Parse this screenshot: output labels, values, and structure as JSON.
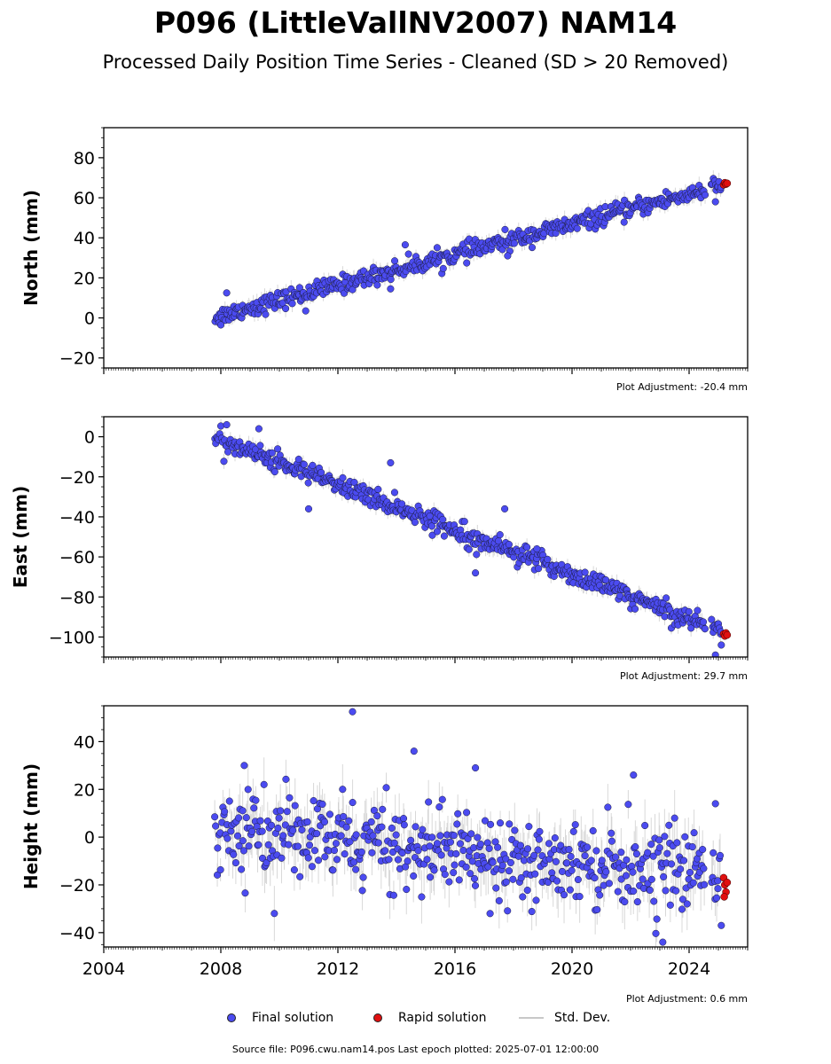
{
  "title": "P096 (LittleVallNV2007) NAM14",
  "subtitle": "Processed Daily Position Time Series - Cleaned (SD > 20 Removed)",
  "legend": {
    "final_label": "Final solution",
    "rapid_label": "Rapid solution",
    "std_label": "Std. Dev.",
    "final_color": "#4b4bf0",
    "rapid_color": "#e01010",
    "std_color": "#c8c8c8"
  },
  "footer": "Source file: P096.cwu.nam14.pos  Last epoch plotted: 2025-07-01 12:00:00",
  "chart_data": [
    {
      "type": "scatter",
      "ylabel": "North (mm)",
      "xlim": [
        2004,
        2026
      ],
      "ylim": [
        -25,
        95
      ],
      "yticks": [
        -20,
        0,
        20,
        40,
        60,
        80
      ],
      "adjustment": "Plot Adjustment: -20.4 mm",
      "trend": {
        "x0": 2007.8,
        "y0": 0.5,
        "x1": 2025.1,
        "y1": 66
      },
      "scatter": 2.2,
      "std_size": 3,
      "rapid": {
        "x": [
          2025.18,
          2025.22,
          2025.26,
          2025.3
        ],
        "y": [
          66.5,
          67.5,
          66.8,
          67.2
        ]
      },
      "outliers": {
        "x": [
          2008.0,
          2008.2,
          2010.9,
          2013.8,
          2014.3,
          2017.8,
          2024.9
        ],
        "y": [
          -3.5,
          12.5,
          3.5,
          14.5,
          36.5,
          31,
          58
        ]
      }
    },
    {
      "type": "scatter",
      "ylabel": "East (mm)",
      "xlim": [
        2004,
        2026
      ],
      "ylim": [
        -110,
        10
      ],
      "yticks": [
        -100,
        -80,
        -60,
        -40,
        -20,
        0
      ],
      "adjustment": "Plot Adjustment: 29.7 mm",
      "trend": {
        "x0": 2007.8,
        "y0": -0.5,
        "x1": 2025.1,
        "y1": -97
      },
      "scatter": 2.5,
      "std_size": 3,
      "rapid": {
        "x": [
          2025.18,
          2025.22,
          2025.26,
          2025.3
        ],
        "y": [
          -98.5,
          -99.5,
          -98,
          -99
        ]
      },
      "outliers": {
        "x": [
          2008.2,
          2009.3,
          2011.0,
          2013.8,
          2016.7,
          2017.7,
          2018.8,
          2024.9,
          2025.1
        ],
        "y": [
          6,
          4,
          -36,
          -13,
          -68,
          -36,
          -56,
          -109,
          -104
        ]
      }
    },
    {
      "type": "scatter",
      "ylabel": "Height (mm)",
      "xlim": [
        2004,
        2026
      ],
      "ylim": [
        -46,
        55
      ],
      "yticks": [
        -40,
        -20,
        0,
        20,
        40
      ],
      "xticks": [
        2004,
        2008,
        2012,
        2016,
        2020,
        2024
      ],
      "adjustment": "Plot Adjustment: 0.6 mm",
      "trend": {
        "x0": 2007.8,
        "y0": 3,
        "x1": 2025.1,
        "y1": -15
      },
      "scatter": 8,
      "std_size": 8,
      "rapid": {
        "x": [
          2025.18,
          2025.22,
          2025.26,
          2025.3,
          2025.2
        ],
        "y": [
          -17,
          -20,
          -23,
          -19,
          -25
        ]
      },
      "outliers": {
        "x": [
          2012.5,
          2008.8,
          2014.6,
          2016.7,
          2017.2,
          2022.1,
          2023.1,
          2024.9,
          2025.1
        ],
        "y": [
          52.5,
          30,
          36,
          29,
          -32,
          26,
          -44,
          14,
          -37
        ]
      }
    }
  ]
}
